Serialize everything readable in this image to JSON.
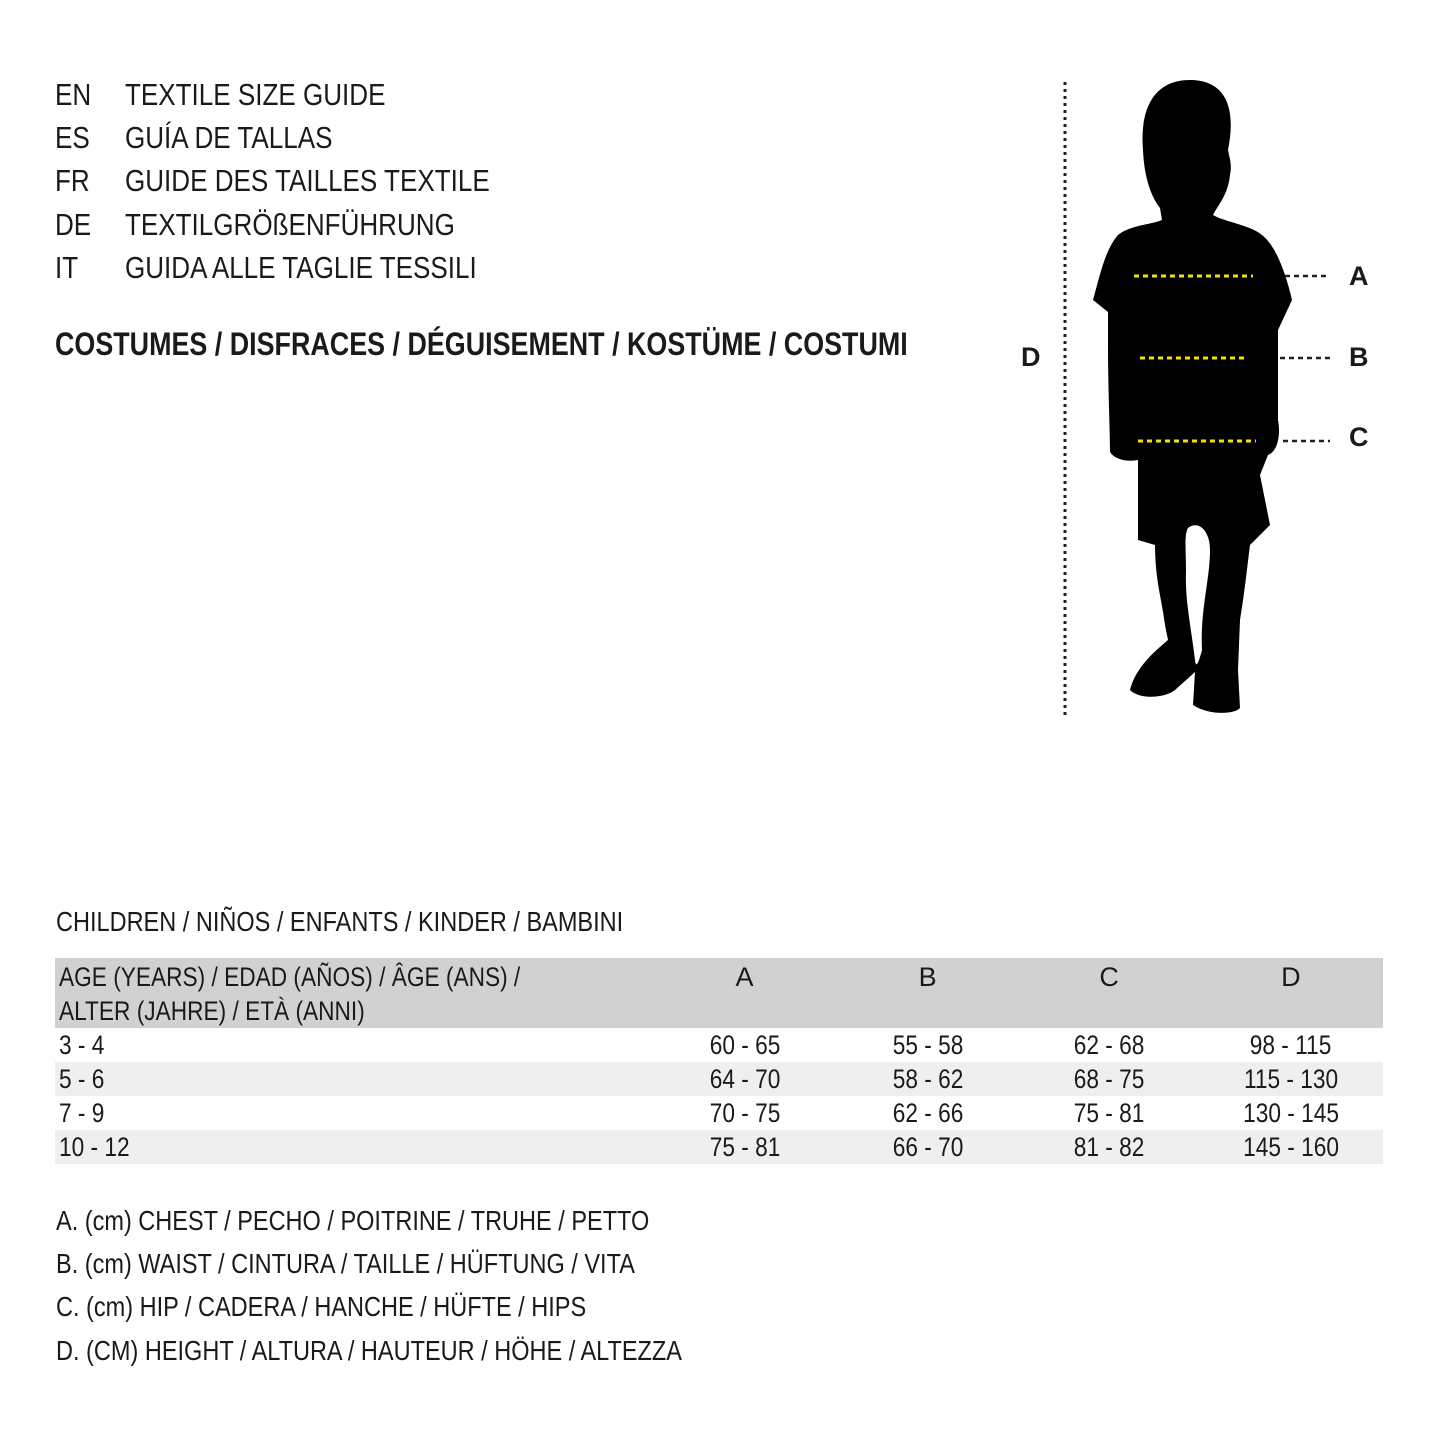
{
  "titles": [
    {
      "code": "EN",
      "text": "TEXTILE SIZE GUIDE"
    },
    {
      "code": "ES",
      "text": "GUÍA DE TALLAS"
    },
    {
      "code": "FR",
      "text": "GUIDE DES TAILLES TEXTILE"
    },
    {
      "code": "DE",
      "text": "TEXTILGRÖßENFÜHRUNG"
    },
    {
      "code": "IT",
      "text": "GUIDA ALLE TAGLIE TESSILI"
    }
  ],
  "category": "COSTUMES / DISFRACES / DÉGUISEMENT / KOSTÜME / COSTUMI",
  "figure": {
    "labels": {
      "a": "A",
      "b": "B",
      "c": "C",
      "d": "D"
    },
    "marker_color": "#f2e200"
  },
  "table": {
    "caption": "CHILDREN / NIÑOS / ENFANTS / KINDER / BAMBINI",
    "header": {
      "age_line1": "AGE (YEARS) / EDAD (AÑOS) / ÂGE (ANS) /",
      "age_line2": "ALTER (JAHRE) / ETÀ (ANNI)",
      "a": "A",
      "b": "B",
      "c": "C",
      "d": "D"
    },
    "rows": [
      [
        "3 - 4",
        "60 - 65",
        "55 - 58",
        "62 - 68",
        "98 - 115"
      ],
      [
        "5 - 6",
        "64 - 70",
        "58 - 62",
        "68 - 75",
        "115 - 130"
      ],
      [
        "7 - 9",
        "70 - 75",
        "62 - 66",
        "75 - 81",
        "130 - 145"
      ],
      [
        "10 - 12",
        "75 - 81",
        "66 - 70",
        "81 - 82",
        "145 - 160"
      ]
    ]
  },
  "legend": [
    "A. (cm) CHEST / PECHO / POITRINE / TRUHE / PETTO",
    "B. (cm) WAIST / CINTURA / TAILLE / HÜFTUNG / VITA",
    "C. (cm) HIP / CADERA / HANCHE / HÜFTE / HIPS",
    "D. (CM) HEIGHT / ALTURA / HAUTEUR / HÖHE / ALTEZZA"
  ]
}
